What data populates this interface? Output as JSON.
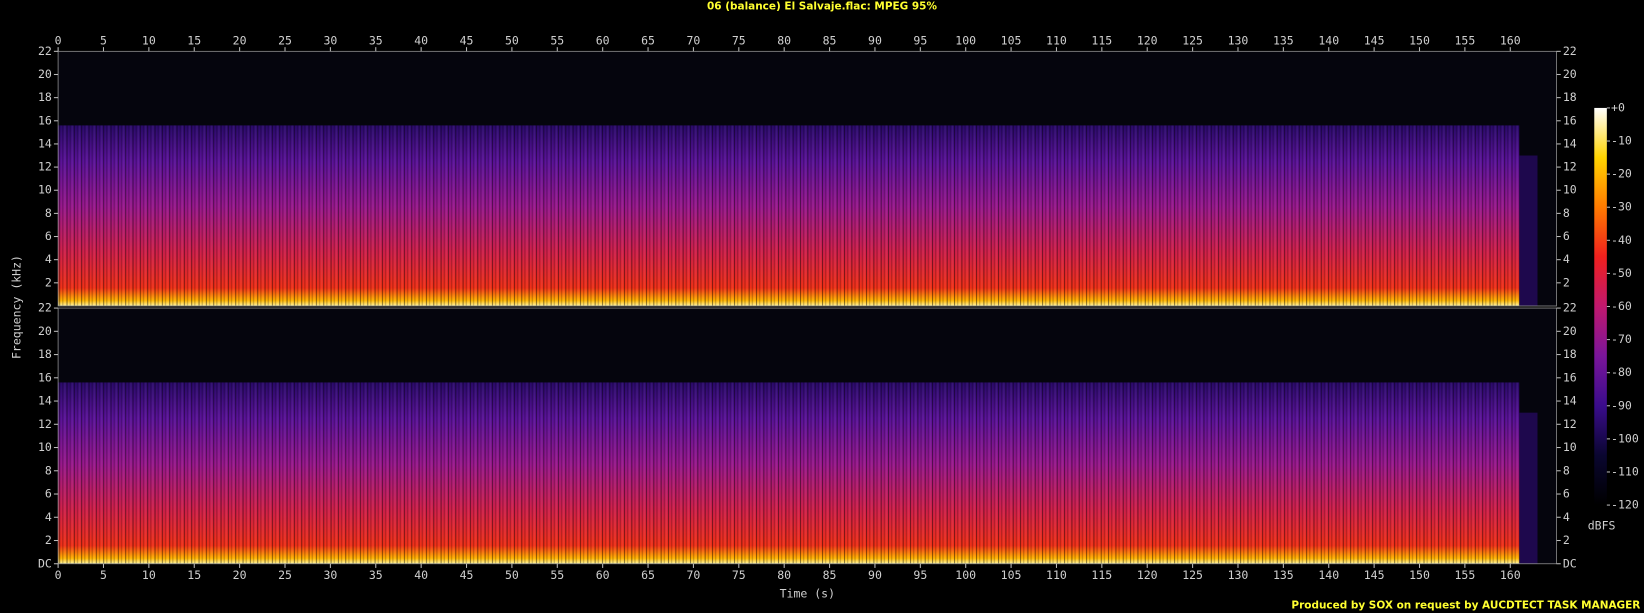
{
  "chart_data": {
    "type": "spectrogram",
    "title": "06 (balance) El Salvaje.flac: MPEG 95%",
    "footer": "Produced by SOX on request by AUCDTECT TASK MANAGER",
    "x_label": "Time (s)",
    "y_label": "Frequency (kHz)",
    "xlim": [
      0,
      165.1
    ],
    "xticks": [
      0,
      5,
      10,
      15,
      20,
      25,
      30,
      35,
      40,
      45,
      50,
      55,
      60,
      65,
      70,
      75,
      80,
      85,
      90,
      95,
      100,
      105,
      110,
      115,
      120,
      125,
      130,
      135,
      140,
      145,
      150,
      155,
      160
    ],
    "panels": [
      {
        "ylim": [
          0,
          22
        ],
        "yticks": [
          2,
          4,
          6,
          8,
          10,
          12,
          14,
          16,
          18,
          20,
          22
        ],
        "lowpass_khz": 15.6,
        "signal_end_s": 161
      },
      {
        "ylim": [
          0,
          22
        ],
        "yticks": [
          {
            "value": 0,
            "label": "DC"
          },
          2,
          4,
          6,
          8,
          10,
          12,
          14,
          16,
          18,
          20,
          22
        ],
        "lowpass_khz": 15.6,
        "signal_end_s": 161
      }
    ],
    "colorbar": {
      "label": "dBFS",
      "clim": [
        -120,
        0
      ],
      "ticks": [
        {
          "value": 0,
          "label": "+0"
        },
        -10,
        -20,
        -30,
        -40,
        -50,
        -60,
        -70,
        -80,
        -90,
        -100,
        -110,
        -120
      ],
      "colormap": [
        "#000000",
        "#0a0630",
        "#3a0c8c",
        "#7a159a",
        "#c0186e",
        "#f0201e",
        "#ff7a00",
        "#ffd400",
        "#ffffff"
      ]
    }
  }
}
